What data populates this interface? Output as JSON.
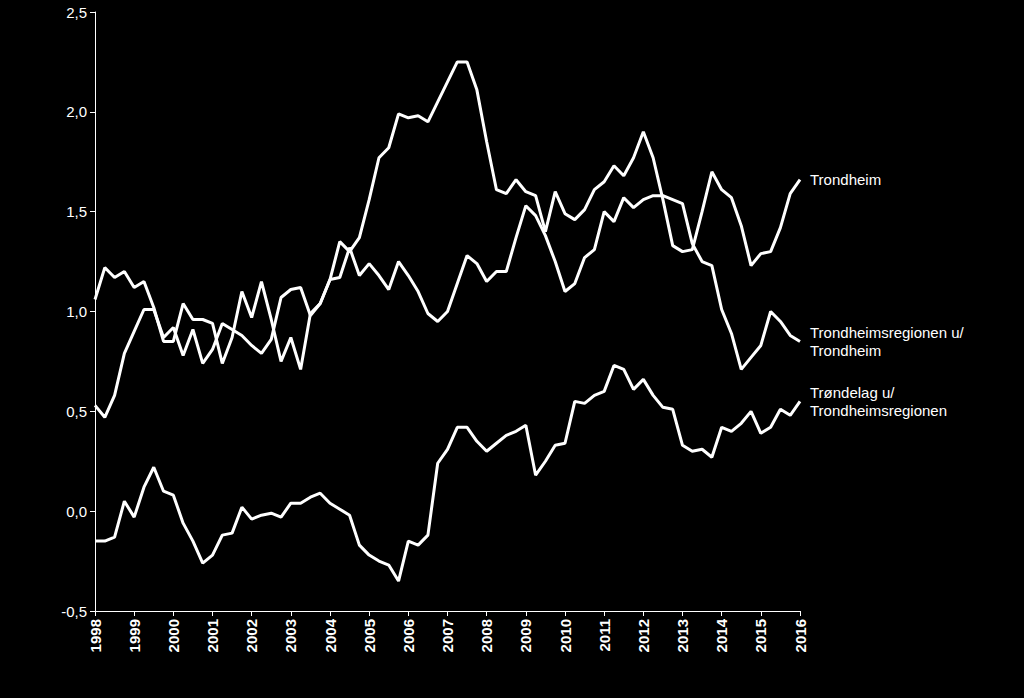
{
  "chart_data": {
    "type": "line",
    "categories": [
      "1998",
      null,
      null,
      null,
      "1999",
      null,
      null,
      null,
      "2000",
      null,
      null,
      null,
      "2001",
      null,
      null,
      null,
      "2002",
      null,
      null,
      null,
      "2003",
      null,
      null,
      null,
      "2004",
      null,
      null,
      null,
      "2005",
      null,
      null,
      null,
      "2006",
      null,
      null,
      null,
      "2007",
      null,
      null,
      null,
      "2008",
      null,
      null,
      null,
      "2009",
      null,
      null,
      null,
      "2010",
      null,
      null,
      null,
      "2011",
      null,
      null,
      null,
      "2012",
      null,
      null,
      null,
      "2013",
      null,
      null,
      null,
      "2014",
      null,
      null,
      null,
      "2015",
      null,
      null,
      null,
      "2016"
    ],
    "series": [
      {
        "name": "Trondheim",
        "color": "#ffffff",
        "values": [
          0.53,
          0.47,
          0.58,
          0.79,
          0.9,
          1.01,
          1.01,
          0.87,
          0.92,
          0.78,
          0.91,
          0.74,
          0.81,
          0.94,
          0.91,
          0.88,
          0.83,
          0.79,
          0.86,
          1.07,
          1.11,
          1.12,
          0.98,
          1.04,
          1.16,
          1.35,
          1.3,
          1.37,
          1.56,
          1.77,
          1.82,
          1.99,
          1.97,
          1.98,
          1.95,
          2.05,
          2.15,
          2.25,
          2.25,
          2.11,
          1.85,
          1.61,
          1.59,
          1.66,
          1.6,
          1.58,
          1.4,
          1.6,
          1.49,
          1.46,
          1.51,
          1.61,
          1.65,
          1.73,
          1.68,
          1.77,
          1.9,
          1.77,
          1.56,
          1.33,
          1.3,
          1.31,
          1.5,
          1.7,
          1.61,
          1.57,
          1.43,
          1.23,
          1.29,
          1.3,
          1.42,
          1.59,
          1.66
        ]
      },
      {
        "name": "Trondheimsregionen u/Trondheim",
        "color": "#ffffff",
        "values": [
          1.06,
          1.22,
          1.17,
          1.2,
          1.12,
          1.15,
          1.02,
          0.85,
          0.85,
          1.04,
          0.96,
          0.96,
          0.94,
          0.74,
          0.87,
          1.1,
          0.97,
          1.15,
          0.96,
          0.75,
          0.87,
          0.71,
          0.99,
          1.04,
          1.16,
          1.17,
          1.32,
          1.18,
          1.24,
          1.18,
          1.11,
          1.25,
          1.18,
          1.1,
          0.99,
          0.95,
          1.0,
          1.14,
          1.28,
          1.24,
          1.15,
          1.2,
          1.2,
          1.37,
          1.53,
          1.48,
          1.38,
          1.25,
          1.1,
          1.14,
          1.27,
          1.31,
          1.5,
          1.45,
          1.57,
          1.52,
          1.56,
          1.58,
          1.58,
          1.56,
          1.54,
          1.34,
          1.25,
          1.23,
          1.01,
          0.89,
          0.71,
          0.77,
          0.83,
          1.0,
          0.95,
          0.88,
          0.85
        ]
      },
      {
        "name": "Trøndelag u/Trondheimsregionen",
        "color": "#ffffff",
        "values": [
          -0.15,
          -0.15,
          -0.13,
          0.05,
          -0.03,
          0.12,
          0.22,
          0.1,
          0.08,
          -0.06,
          -0.15,
          -0.26,
          -0.22,
          -0.12,
          -0.11,
          0.02,
          -0.04,
          -0.02,
          -0.01,
          -0.03,
          0.04,
          0.04,
          0.07,
          0.09,
          0.04,
          0.01,
          -0.02,
          -0.17,
          -0.22,
          -0.25,
          -0.27,
          -0.35,
          -0.15,
          -0.17,
          -0.12,
          0.24,
          0.31,
          0.42,
          0.42,
          0.35,
          0.3,
          0.34,
          0.38,
          0.4,
          0.43,
          0.18,
          0.25,
          0.33,
          0.34,
          0.55,
          0.54,
          0.58,
          0.6,
          0.73,
          0.71,
          0.61,
          0.66,
          0.58,
          0.52,
          0.51,
          0.33,
          0.3,
          0.31,
          0.27,
          0.42,
          0.4,
          0.44,
          0.5,
          0.39,
          0.42,
          0.51,
          0.48,
          0.55
        ]
      }
    ],
    "ylim": [
      -0.5,
      2.5
    ],
    "yticks": [
      {
        "value": -0.5,
        "label": "-0,5"
      },
      {
        "value": 0,
        "label": "0,0"
      },
      {
        "value": 0.5,
        "label": "0,5"
      },
      {
        "value": 1,
        "label": "1,0"
      },
      {
        "value": 1.5,
        "label": "1,5"
      },
      {
        "value": 2,
        "label": "2,0"
      },
      {
        "value": 2.5,
        "label": "2,5"
      }
    ],
    "grid": false
  }
}
